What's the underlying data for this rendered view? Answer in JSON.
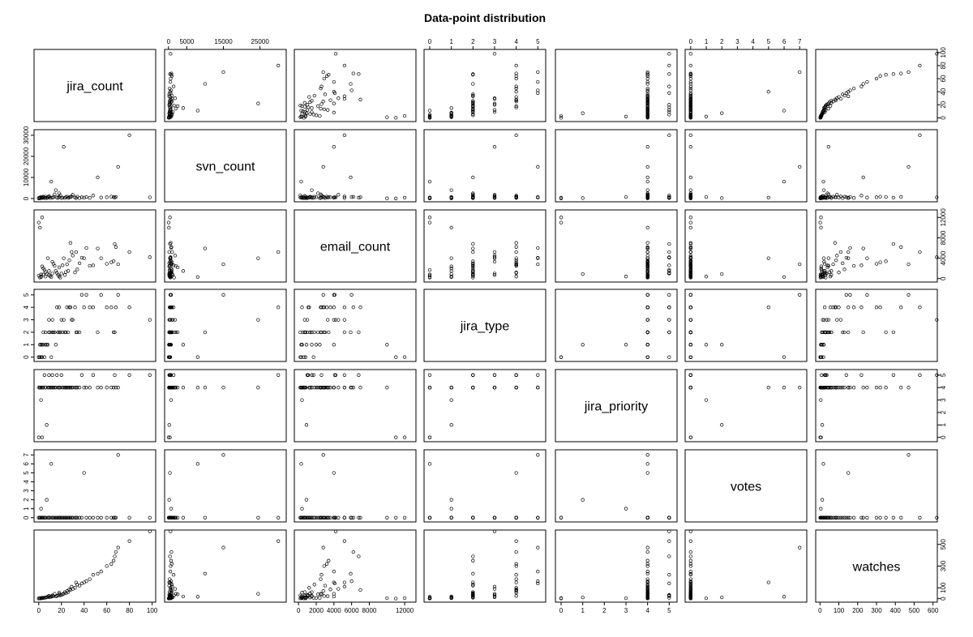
{
  "chart_data": {
    "type": "scatter",
    "subtype": "scatterplot-matrix",
    "title": "Data-point distribution",
    "variables": [
      {
        "name": "jira_count",
        "range": [
          -2,
          101
        ],
        "ticks": [
          0,
          20,
          40,
          60,
          80,
          100
        ]
      },
      {
        "name": "svn_count",
        "range": [
          -400,
          31500
        ],
        "ticks": [
          0,
          5000,
          15000,
          25000
        ],
        "left_ticks": [
          0,
          10000,
          20000,
          30000
        ]
      },
      {
        "name": "email_count",
        "range": [
          -200,
          13000
        ],
        "ticks": [
          0,
          2000,
          4000,
          6000,
          8000,
          12000
        ],
        "right_ticks": [
          0,
          4000,
          8000,
          12000
        ]
      },
      {
        "name": "jira_type",
        "range": [
          -0.15,
          5.25
        ],
        "ticks": [
          0,
          1,
          2,
          3,
          4,
          5
        ]
      },
      {
        "name": "jira_priority",
        "range": [
          -0.15,
          5.25
        ],
        "ticks": [
          0,
          1,
          2,
          3,
          4,
          5
        ]
      },
      {
        "name": "votes",
        "range": [
          -0.2,
          7.3
        ],
        "ticks": [
          0,
          1,
          2,
          3,
          4,
          5,
          6,
          7
        ]
      },
      {
        "name": "watches",
        "range": [
          -10,
          610
        ],
        "ticks": [
          0,
          100,
          200,
          300,
          400,
          500,
          600
        ],
        "right_ticks": [
          0,
          100,
          300,
          500
        ]
      }
    ],
    "columns": [
      "jira_count",
      "svn_count",
      "email_count",
      "jira_type",
      "jira_priority",
      "votes",
      "watches"
    ],
    "observations": [
      [
        98,
        550,
        4200,
        3,
        5,
        0,
        620
      ],
      [
        80,
        30000,
        5200,
        4,
        5,
        0,
        530
      ],
      [
        70,
        15000,
        2800,
        5,
        4,
        7,
        470
      ],
      [
        68,
        800,
        6200,
        4,
        4,
        0,
        430
      ],
      [
        67,
        400,
        6800,
        2,
        5,
        0,
        390
      ],
      [
        66,
        700,
        3400,
        2,
        4,
        0,
        350
      ],
      [
        64,
        900,
        3200,
        4,
        4,
        0,
        320
      ],
      [
        60,
        600,
        2900,
        4,
        4,
        0,
        300
      ],
      [
        55,
        500,
        4000,
        5,
        4,
        0,
        250
      ],
      [
        52,
        10000,
        5900,
        2,
        4,
        0,
        230
      ],
      [
        48,
        1400,
        2600,
        4,
        5,
        0,
        220
      ],
      [
        45,
        300,
        2500,
        4,
        4,
        0,
        180
      ],
      [
        42,
        700,
        6000,
        5,
        4,
        0,
        160
      ],
      [
        40,
        400,
        4000,
        4,
        4,
        5,
        150
      ],
      [
        38,
        600,
        4100,
        5,
        5,
        0,
        140
      ],
      [
        36,
        200,
        3000,
        2,
        4,
        0,
        120
      ],
      [
        34,
        900,
        1800,
        2,
        4,
        0,
        130
      ],
      [
        32,
        500,
        1200,
        4,
        4,
        0,
        100
      ],
      [
        30,
        1800,
        4500,
        3,
        4,
        0,
        90
      ],
      [
        29,
        1000,
        5200,
        3,
        4,
        0,
        110
      ],
      [
        28,
        600,
        7000,
        4,
        4,
        0,
        80
      ],
      [
        26,
        300,
        1500,
        2,
        4,
        0,
        60
      ],
      [
        25,
        900,
        2800,
        4,
        4,
        0,
        70
      ],
      [
        24,
        700,
        1300,
        2,
        4,
        0,
        50
      ],
      [
        22,
        24500,
        4000,
        3,
        4,
        0,
        45
      ],
      [
        21,
        400,
        2600,
        2,
        4,
        0,
        40
      ],
      [
        20,
        200,
        1000,
        3,
        5,
        0,
        35
      ],
      [
        19,
        1500,
        200,
        2,
        4,
        0,
        30
      ],
      [
        18,
        800,
        400,
        4,
        4,
        0,
        55
      ],
      [
        17,
        300,
        700,
        2,
        4,
        0,
        28
      ],
      [
        16,
        500,
        1100,
        4,
        5,
        0,
        25
      ],
      [
        15,
        4000,
        1500,
        1,
        4,
        0,
        20
      ],
      [
        14,
        2000,
        2500,
        2,
        4,
        0,
        45
      ],
      [
        13,
        600,
        2900,
        2,
        4,
        0,
        24
      ],
      [
        12,
        400,
        3300,
        3,
        4,
        0,
        22
      ],
      [
        11,
        8000,
        300,
        0,
        4,
        6,
        18
      ],
      [
        10,
        300,
        500,
        2,
        4,
        0,
        16
      ],
      [
        9,
        1200,
        700,
        3,
        4,
        0,
        14
      ],
      [
        8,
        500,
        4000,
        1,
        4,
        0,
        20
      ],
      [
        7,
        200,
        900,
        1,
        1,
        2,
        12
      ],
      [
        6,
        900,
        1300,
        2,
        4,
        0,
        10
      ],
      [
        5,
        300,
        1700,
        0,
        5,
        0,
        8
      ],
      [
        4,
        600,
        2000,
        1,
        4,
        0,
        6
      ],
      [
        3,
        400,
        12000,
        0,
        0,
        0,
        5
      ],
      [
        3,
        200,
        2400,
        1,
        4,
        0,
        7
      ],
      [
        2,
        700,
        400,
        1,
        3,
        1,
        4
      ],
      [
        2,
        300,
        800,
        0,
        4,
        0,
        3
      ],
      [
        1,
        500,
        200,
        0,
        4,
        0,
        2
      ],
      [
        1,
        100,
        10000,
        1,
        4,
        0,
        5
      ],
      [
        0,
        50,
        11000,
        0,
        0,
        0,
        1
      ],
      [
        0,
        200,
        600,
        0,
        4,
        0,
        2
      ],
      [
        12,
        500,
        1000,
        2,
        5,
        0,
        30
      ],
      [
        9,
        700,
        1500,
        2,
        5,
        0,
        26
      ],
      [
        6,
        300,
        400,
        1,
        4,
        0,
        12
      ],
      [
        4,
        900,
        800,
        2,
        4,
        0,
        9
      ],
      [
        2,
        400,
        300,
        1,
        4,
        0,
        6
      ],
      [
        18,
        2500,
        2200,
        2,
        4,
        0,
        40
      ],
      [
        23,
        300,
        700,
        2,
        4,
        0,
        60
      ],
      [
        27,
        600,
        3600,
        4,
        4,
        0,
        85
      ],
      [
        33,
        200,
        5200,
        2,
        4,
        0,
        150
      ]
    ]
  }
}
